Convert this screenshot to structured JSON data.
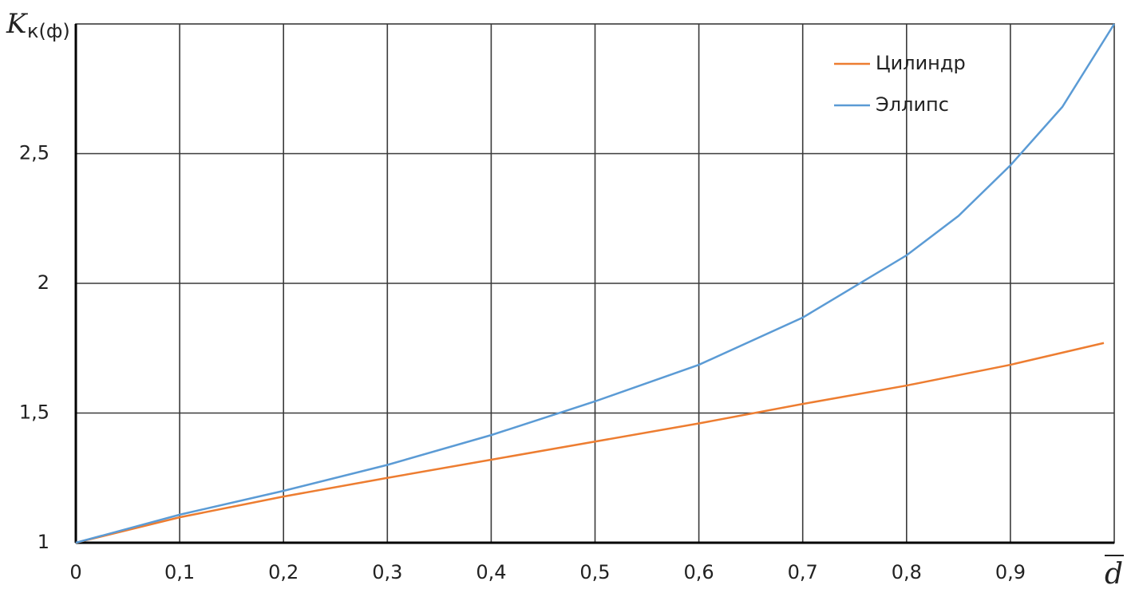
{
  "chart_data": {
    "type": "line",
    "y_label": "K",
    "y_label_subscript": "к(ф)",
    "x_label": "d",
    "xlim": [
      0,
      1
    ],
    "ylim": [
      1,
      3
    ],
    "xticks": [
      0,
      {
        "value": 0.1,
        "label": "0,1"
      },
      {
        "value": 0.2,
        "label": "0,2"
      },
      {
        "value": 0.3,
        "label": "0,3"
      },
      {
        "value": 0.4,
        "label": "0,4"
      },
      {
        "value": 0.5,
        "label": "0,5"
      },
      {
        "value": 0.6,
        "label": "0,6"
      },
      {
        "value": 0.7,
        "label": "0,7"
      },
      {
        "value": 0.8,
        "label": "0,8"
      },
      {
        "value": 0.9,
        "label": "0,9"
      }
    ],
    "yticks": [
      1,
      {
        "value": 1.5,
        "label": "1,5"
      },
      2,
      {
        "value": 2.5,
        "label": "2,5"
      }
    ],
    "grid": true,
    "series": [
      {
        "name": "Цилиндр",
        "color": "#ed7d31",
        "x": [
          0,
          0.1,
          0.2,
          0.3,
          0.4,
          0.5,
          0.6,
          0.7,
          0.8,
          0.9,
          0.99
        ],
        "values": [
          1,
          1.098,
          1.178,
          1.25,
          1.32,
          1.39,
          1.46,
          1.535,
          1.606,
          1.686,
          1.77
        ]
      },
      {
        "name": "Эллипс",
        "color": "#5b9bd5",
        "x": [
          0,
          0.1,
          0.2,
          0.3,
          0.4,
          0.5,
          0.6,
          0.7,
          0.8,
          0.85,
          0.9,
          0.95,
          1.0
        ],
        "values": [
          1,
          1.108,
          1.2,
          1.3,
          1.415,
          1.545,
          1.686,
          1.868,
          2.108,
          2.26,
          2.455,
          2.68,
          3.0
        ]
      }
    ]
  }
}
